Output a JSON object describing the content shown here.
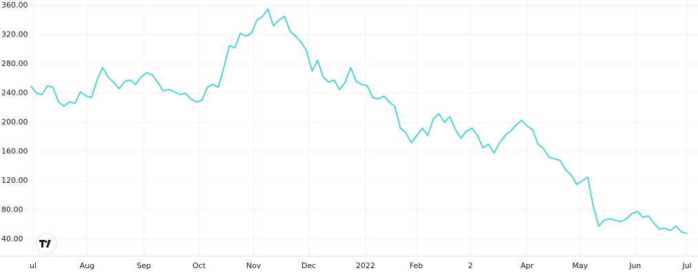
{
  "chart_data": {
    "type": "line",
    "x": [
      0,
      1,
      2,
      3,
      4,
      5,
      6,
      7,
      8,
      9,
      10,
      11,
      12,
      13,
      14,
      15,
      16,
      17,
      18,
      19,
      20,
      21,
      22,
      23,
      24,
      25,
      26,
      27,
      28,
      29,
      30,
      31,
      32,
      33,
      34,
      35,
      36,
      37,
      38,
      39,
      40,
      41,
      42,
      43,
      44,
      45,
      46,
      47,
      48,
      49,
      50,
      51,
      52,
      53,
      54,
      55,
      56,
      57,
      58,
      59,
      60,
      61,
      62,
      63,
      64,
      65,
      66,
      67,
      68,
      69,
      70,
      71,
      72,
      73,
      74,
      75,
      76,
      77,
      78,
      79,
      80,
      81,
      82,
      83,
      84,
      85,
      86,
      87,
      88,
      89,
      90,
      91,
      92,
      93,
      94,
      95,
      96,
      97,
      98,
      99,
      100,
      101,
      102,
      103,
      104,
      105,
      106,
      107,
      108,
      109,
      110,
      111,
      112,
      113,
      114,
      115,
      116,
      117,
      118,
      119
    ],
    "series": [
      {
        "color": "#4fd1d9",
        "values": [
          250,
          240,
          238,
          250,
          248,
          228,
          222,
          228,
          226,
          242,
          236,
          234,
          258,
          275,
          262,
          255,
          246,
          256,
          258,
          252,
          262,
          268,
          265,
          255,
          243,
          245,
          242,
          238,
          240,
          232,
          228,
          230,
          248,
          252,
          248,
          275,
          305,
          302,
          322,
          318,
          322,
          340,
          345,
          355,
          332,
          340,
          345,
          325,
          318,
          310,
          298,
          270,
          285,
          262,
          255,
          258,
          245,
          255,
          275,
          256,
          252,
          250,
          234,
          232,
          236,
          228,
          222,
          192,
          186,
          172,
          182,
          192,
          182,
          205,
          212,
          200,
          208,
          190,
          178,
          188,
          192,
          182,
          165,
          170,
          158,
          172,
          182,
          188,
          196,
          203,
          195,
          190,
          170,
          164,
          152,
          150,
          148,
          135,
          128,
          115,
          120,
          125,
          85,
          58,
          66,
          68,
          66,
          64,
          68,
          75,
          78,
          70,
          72,
          62,
          54,
          55,
          52,
          58,
          50,
          48
        ]
      }
    ],
    "xlim": [
      -5.6,
      121.0
    ],
    "xticks": [
      {
        "value": 0.4,
        "label": "ul"
      },
      {
        "value": 10.2,
        "label": "Aug"
      },
      {
        "value": 20.5,
        "label": "Sep"
      },
      {
        "value": 30.5,
        "label": "Oct"
      },
      {
        "value": 40.4,
        "label": "Nov"
      },
      {
        "value": 50.4,
        "label": "Dec"
      },
      {
        "value": 60.7,
        "label": "2022"
      },
      {
        "value": 69.9,
        "label": "Feb"
      },
      {
        "value": 79.7,
        "label": "2"
      },
      {
        "value": 90,
        "label": "Apr"
      },
      {
        "value": 99.6,
        "label": "May"
      },
      {
        "value": 109.6,
        "label": "Jun"
      },
      {
        "value": 119,
        "label": "Jul"
      }
    ],
    "ylim": [
      17.4,
      367.5
    ],
    "yticks": [
      {
        "value": 40,
        "label": "40.00"
      },
      {
        "value": 80,
        "label": "80.00"
      },
      {
        "value": 120,
        "label": "120.00"
      },
      {
        "value": 160,
        "label": "160.00"
      },
      {
        "value": 200,
        "label": "200.00"
      },
      {
        "value": 240,
        "label": "240.00"
      },
      {
        "value": 280,
        "label": "280.00"
      },
      {
        "value": 320,
        "label": "320.00"
      },
      {
        "value": 360,
        "label": "360.00"
      }
    ],
    "grid": true
  }
}
